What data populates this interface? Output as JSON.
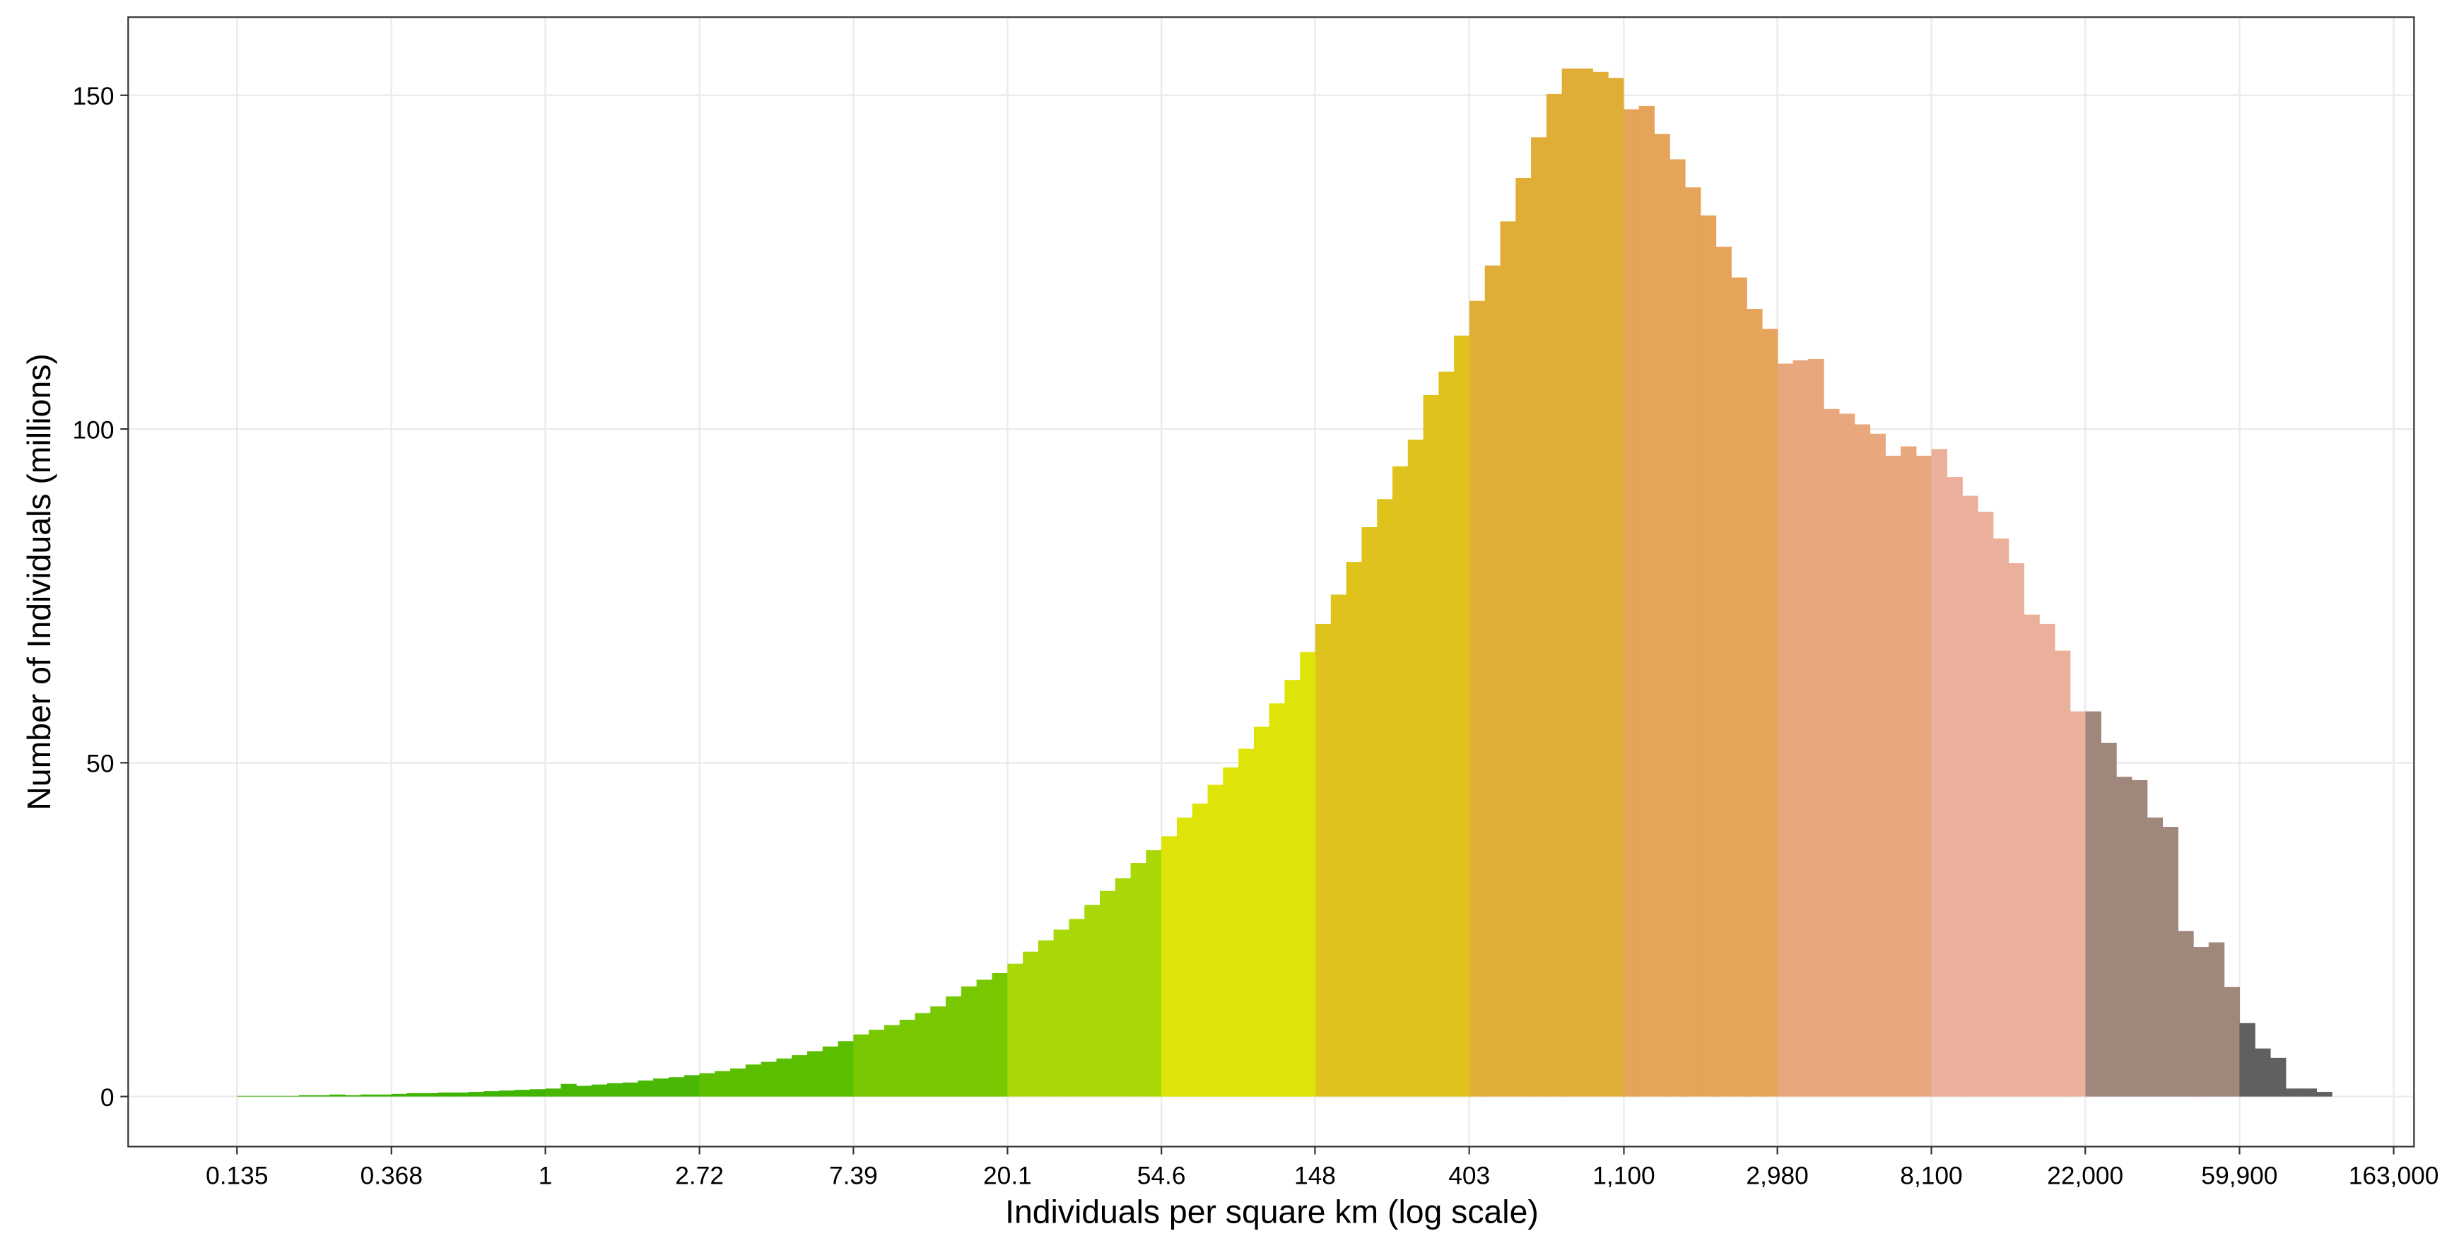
{
  "chart_data": {
    "type": "histogram",
    "x_label": "Individuals per square km (log scale)",
    "y_label": "Number of Individuals (millions)",
    "x_log": true,
    "grid": true,
    "xlim": [
      0.0666,
      186000
    ],
    "ylim": [
      -7.5,
      161.7
    ],
    "xticks": [
      0.135,
      0.368,
      1,
      2.72,
      7.39,
      20.1,
      54.6,
      148,
      403,
      {
        "value": 1100,
        "label": "1,100"
      },
      {
        "value": 2980,
        "label": "2,980"
      },
      {
        "value": 8100,
        "label": "8,100"
      },
      {
        "value": 22000,
        "label": "22,000"
      },
      {
        "value": 59900,
        "label": "59,900"
      },
      {
        "value": 163000,
        "label": "163,000"
      }
    ],
    "yticks": [
      0,
      50,
      100,
      150
    ],
    "series": [
      {
        "color": "#3db400",
        "bins": [
          0.1353,
          0.1496,
          0.1653,
          0.1827,
          0.2019,
          0.2231,
          0.2466,
          0.2725,
          0.3012,
          0.3329,
          0.3679
        ],
        "values": [
          0.1,
          0.1,
          0.1,
          0.1,
          0.2,
          0.2,
          0.3,
          0.2,
          0.3,
          0.3
        ]
      },
      {
        "color": "#3fb500",
        "bins": [
          0.3679,
          0.4066,
          0.4493,
          0.4966,
          0.5488,
          0.6065,
          0.6703,
          0.7408,
          0.8187,
          0.9048,
          1
        ],
        "values": [
          0.4,
          0.5,
          0.5,
          0.6,
          0.6,
          0.7,
          0.8,
          0.9,
          1.0,
          1.1
        ]
      },
      {
        "color": "#48b804",
        "bins": [
          1,
          1.105,
          1.221,
          1.35,
          1.492,
          1.649,
          1.822,
          2.014,
          2.226,
          2.46,
          2.718
        ],
        "values": [
          1.2,
          1.9,
          1.6,
          1.8,
          2.0,
          2.1,
          2.4,
          2.7,
          2.9,
          3.2
        ]
      },
      {
        "color": "#5cbe00",
        "bins": [
          2.718,
          3.004,
          3.32,
          3.669,
          4.055,
          4.482,
          4.953,
          5.474,
          6.05,
          6.686,
          7.389
        ],
        "values": [
          3.5,
          3.8,
          4.2,
          4.8,
          5.2,
          5.7,
          6.2,
          6.8,
          7.5,
          8.3
        ]
      },
      {
        "color": "#77c800",
        "bins": [
          7.389,
          8.166,
          9.025,
          9.974,
          11.02,
          12.18,
          13.46,
          14.88,
          16.44,
          18.17,
          20.09
        ],
        "values": [
          9.3,
          10,
          10.7,
          11.5,
          12.5,
          13.5,
          15,
          16.5,
          17.5,
          18.5
        ]
      },
      {
        "color": "#a9d808",
        "bins": [
          20.09,
          22.2,
          24.53,
          27.11,
          29.96,
          33.12,
          36.6,
          40.45,
          44.7,
          49.4,
          54.6
        ],
        "values": [
          19.9,
          21.7,
          23.4,
          25,
          26.6,
          28.7,
          30.8,
          32.7,
          35,
          36.9
        ]
      },
      {
        "color": "#dfe408",
        "bins": [
          54.6,
          60.34,
          66.69,
          73.7,
          81.45,
          90.02,
          99.48,
          109.9,
          121.5,
          134.3,
          148.4
        ],
        "values": [
          39,
          41.8,
          43.9,
          46.7,
          49.3,
          52.1,
          55.4,
          58.9,
          62.4,
          66.6
        ]
      },
      {
        "color": "#dfc31c",
        "bins": [
          148.4,
          164,
          181.3,
          200.3,
          221.4,
          244.7,
          270.4,
          298.9,
          330.3,
          365,
          403.4
        ],
        "values": [
          70.8,
          75.2,
          80.1,
          85.3,
          89.5,
          94.4,
          98.4,
          105.1,
          108.6,
          114
        ]
      },
      {
        "color": "#e0ae36",
        "bins": [
          403.4,
          445.9,
          492.7,
          544.6,
          601.8,
          665.1,
          735.1,
          812.4,
          897.8,
          992.3,
          1097
        ],
        "values": [
          119.2,
          124.5,
          131.1,
          137.6,
          143.7,
          150.2,
          154,
          154,
          153.5,
          152.6
        ]
      },
      {
        "color": "#e6a35a",
        "bins": [
          1097,
          1212,
          1339,
          1480,
          1636,
          1808,
          1998,
          2208,
          2441,
          2697,
          2981
        ],
        "values": [
          147.9,
          148.4,
          144.2,
          140.4,
          136.2,
          132,
          127.3,
          122.7,
          118,
          115
        ]
      },
      {
        "color": "#e8a77c",
        "bins": [
          2981,
          3295,
          3641,
          4024,
          4447,
          4915,
          5432,
          6003,
          6634,
          7332,
          8103
        ],
        "values": [
          109.8,
          110.3,
          110.5,
          103,
          102.3,
          100.7,
          99.3,
          96,
          97.4,
          96
        ]
      },
      {
        "color": "#ebb09b",
        "bins": [
          8103,
          8955,
          9897,
          10938,
          12088,
          13360,
          14765,
          16318,
          18034,
          19930,
          22026
        ],
        "values": [
          97,
          92.8,
          90,
          87.6,
          83.6,
          79.9,
          72.2,
          70.8,
          66.8,
          57.7
        ]
      },
      {
        "color": "#a0877c",
        "bins": [
          22026,
          24343,
          26903,
          29733,
          32860,
          36316,
          40135,
          44356,
          49021,
          54176,
          59874
        ],
        "values": [
          57.7,
          53,
          47.9,
          47.4,
          41.8,
          40.4,
          24.8,
          22.4,
          23.1,
          16.4
        ]
      },
      {
        "color": "#606060",
        "bins": [
          59874,
          66171,
          73130,
          80822,
          89322,
          98716,
          109098
        ],
        "values": [
          11,
          7.2,
          5.8,
          1.2,
          1.2,
          0.7
        ]
      }
    ]
  }
}
